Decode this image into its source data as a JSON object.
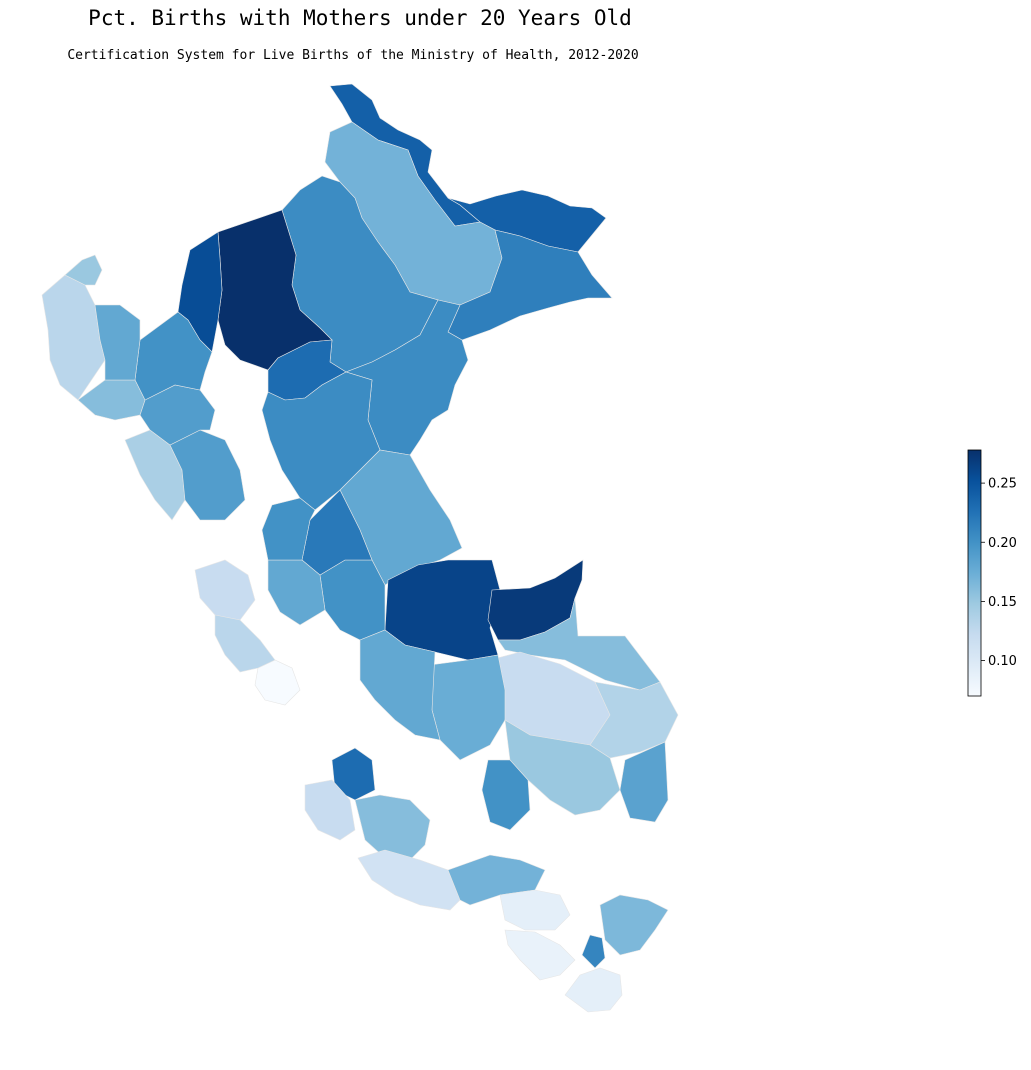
{
  "title": "Pct. Births with Mothers under 20 Years Old",
  "subtitle": "Certification System for Live Births of the Ministry of Health, 2012-2020",
  "colorbar": {
    "min": 0.07,
    "max": 0.278,
    "ticks": [
      "0.10",
      "0.15",
      "0.20",
      "0.25"
    ],
    "tick_values": [
      0.1,
      0.15,
      0.2,
      0.25
    ],
    "colormap": "Blues",
    "colors": [
      "#f7fbff",
      "#deebf7",
      "#c6dbef",
      "#9ecae1",
      "#6baed6",
      "#4292c6",
      "#2171b5",
      "#08519c",
      "#08306b"
    ]
  },
  "regions": [
    {
      "name": "north-loreto-border",
      "value": 0.24
    },
    {
      "name": "loreto-northeast-strip",
      "value": 0.24
    },
    {
      "name": "loreto-central",
      "value": 0.17
    },
    {
      "name": "loreto-west",
      "value": 0.205
    },
    {
      "name": "loreto-east",
      "value": 0.215
    },
    {
      "name": "loreto-southeast",
      "value": 0.205
    },
    {
      "name": "amazonas-dark",
      "value": 0.278
    },
    {
      "name": "amazonas-west",
      "value": 0.255
    },
    {
      "name": "san-martin-central",
      "value": 0.23
    },
    {
      "name": "ucayali-north",
      "value": 0.205
    },
    {
      "name": "ucayali-central",
      "value": 0.18
    },
    {
      "name": "ucayali-south-a",
      "value": 0.262
    },
    {
      "name": "ucayali-south-b",
      "value": 0.27
    },
    {
      "name": "madre-de-dios-north",
      "value": 0.16
    },
    {
      "name": "madre-de-dios-central",
      "value": 0.12
    },
    {
      "name": "madre-de-dios-south",
      "value": 0.135
    },
    {
      "name": "puno-east",
      "value": 0.185
    },
    {
      "name": "junin-east",
      "value": 0.2
    },
    {
      "name": "junin-central",
      "value": 0.175
    },
    {
      "name": "pasco",
      "value": 0.22
    },
    {
      "name": "cusco-north",
      "value": 0.18
    },
    {
      "name": "cusco-central",
      "value": 0.15
    },
    {
      "name": "apurimac",
      "value": 0.2
    },
    {
      "name": "ayacucho",
      "value": 0.16
    },
    {
      "name": "huancavelica",
      "value": 0.23
    },
    {
      "name": "ica",
      "value": 0.12
    },
    {
      "name": "arequipa-west",
      "value": 0.11
    },
    {
      "name": "arequipa-central",
      "value": 0.17
    },
    {
      "name": "arequipa-south",
      "value": 0.09
    },
    {
      "name": "moquegua",
      "value": 0.085
    },
    {
      "name": "tacna",
      "value": 0.09
    },
    {
      "name": "puno-south",
      "value": 0.165
    },
    {
      "name": "puno-spot",
      "value": 0.21
    },
    {
      "name": "lima-coast",
      "value": 0.12
    },
    {
      "name": "lima-city",
      "value": 0.07
    },
    {
      "name": "ancash-coast",
      "value": 0.13
    },
    {
      "name": "ancash-inland",
      "value": 0.18
    },
    {
      "name": "huanuco",
      "value": 0.2
    },
    {
      "name": "la-libertad-coast",
      "value": 0.14
    },
    {
      "name": "la-libertad-inland",
      "value": 0.19
    },
    {
      "name": "cajamarca-south",
      "value": 0.19
    },
    {
      "name": "cajamarca-north",
      "value": 0.2
    },
    {
      "name": "lambayeque",
      "value": 0.16
    },
    {
      "name": "piura-coast",
      "value": 0.13
    },
    {
      "name": "piura-inland",
      "value": 0.18
    },
    {
      "name": "tumbes",
      "value": 0.15
    }
  ]
}
